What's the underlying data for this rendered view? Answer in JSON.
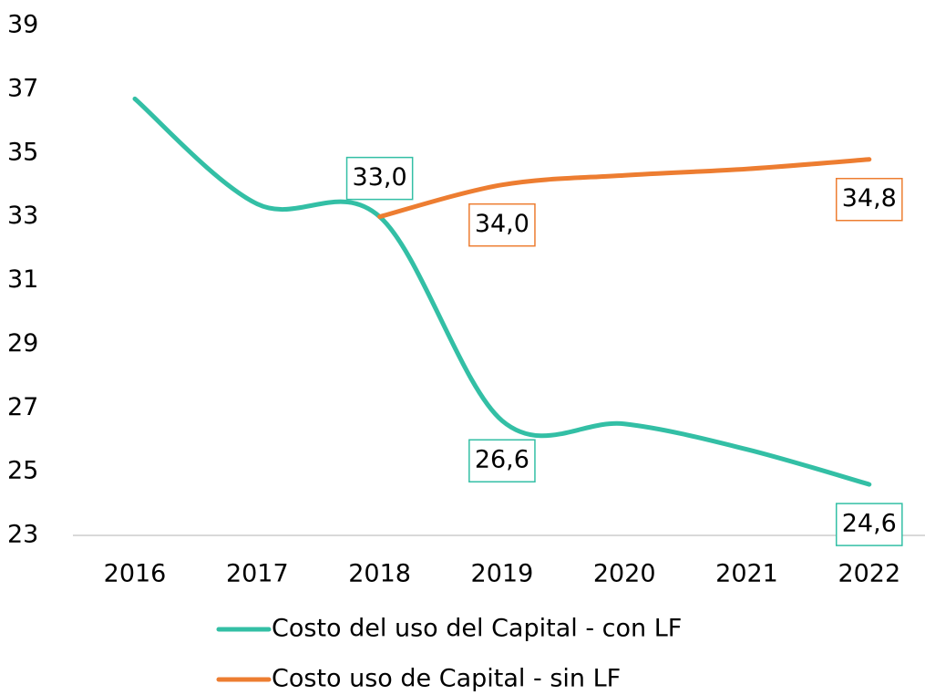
{
  "chart_data": {
    "type": "line",
    "categories": [
      "2016",
      "2017",
      "2018",
      "2019",
      "2020",
      "2021",
      "2022"
    ],
    "series": [
      {
        "name": "Costo del uso del Capital - con LF",
        "color": "#33bfa5",
        "values": [
          36.7,
          33.4,
          33.0,
          26.6,
          26.5,
          25.7,
          24.6
        ],
        "value_labels": [
          null,
          null,
          "33,0",
          "26,6",
          null,
          null,
          "24,6"
        ]
      },
      {
        "name": "Costo uso de Capital - sin LF",
        "color": "#ed7d31",
        "values": [
          null,
          null,
          33.0,
          34.0,
          34.3,
          34.5,
          34.8
        ],
        "value_labels": [
          null,
          null,
          null,
          "34,0",
          null,
          null,
          "34,8"
        ]
      }
    ],
    "ylim": [
      23,
      39
    ],
    "yticks": [
      23,
      25,
      27,
      29,
      31,
      33,
      35,
      37,
      39
    ],
    "grid": false,
    "legend": "bottom"
  }
}
